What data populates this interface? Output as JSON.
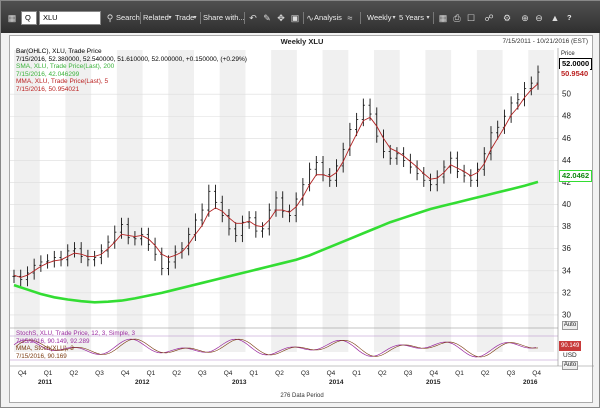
{
  "toolbar": {
    "symbol_prefix": "Q",
    "symbol_value": "XLU",
    "search": "Search",
    "related": "Related",
    "trade": "Trade",
    "share": "Share with...",
    "analysis": "Analysis",
    "interval": "Weekly",
    "range": "5 Years",
    "help": "?"
  },
  "chart": {
    "title": "Weekly XLU",
    "date_range": "7/15/2011 - 10/21/2016 (EST)",
    "price_axis_label": "Price",
    "price_box": "52.0000",
    "mma_box": "50.9540",
    "sma_box": "42.0462",
    "usd_label": "USD",
    "auto_label": "Auto",
    "stoch_box": "90.149",
    "footer": "276 Data Period",
    "legend": [
      {
        "text": "Bar(OHLC), XLU, Trade Price",
        "color": "black"
      },
      {
        "text": "7/15/2016, 52.380000, 52.540000, 51.610000, 52.000000, +0.150000, (+0.29%)",
        "color": "black"
      },
      {
        "text": "SMA, XLU, Trade Price(Last), 200",
        "color": "green"
      },
      {
        "text": "7/15/2016, 42.046299",
        "color": "green"
      },
      {
        "text": "MMA, XLU, Trade Price(Last), 5",
        "color": "red"
      },
      {
        "text": "7/15/2016, 50.954021",
        "color": "red"
      }
    ],
    "stoch_legend": [
      {
        "text": "StochS, XLU, Trade Price, 12, 3, Simple, 3",
        "color": "purple"
      },
      {
        "text": "7/15/2016, 90.149, 92.289",
        "color": "purple"
      },
      {
        "text": "MMA, Stoch(XLU), 3",
        "color": "brown"
      },
      {
        "text": "7/15/2016, 90.169",
        "color": "brown"
      }
    ],
    "y_ticks": [
      "50",
      "48",
      "46",
      "44",
      "42",
      "40",
      "38",
      "36",
      "34",
      "32",
      "30"
    ],
    "x_quarters": [
      "Q4",
      "Q1",
      "Q2",
      "Q3",
      "Q4",
      "Q1",
      "Q2",
      "Q3",
      "Q4",
      "Q1",
      "Q2",
      "Q3",
      "Q4",
      "Q1",
      "Q2",
      "Q3",
      "Q4",
      "Q1",
      "Q2",
      "Q3",
      "Q4"
    ],
    "x_years": [
      "2011",
      "2012",
      "2013",
      "2014",
      "2015",
      "2016"
    ]
  },
  "chart_data": {
    "type": "line",
    "ylim": [
      29,
      54
    ],
    "series": [
      {
        "name": "Bar(OHLC), XLU, Trade Price",
        "color": "#000000",
        "values": [
          33.5,
          33.2,
          33.8,
          34.5,
          34.8,
          34.9,
          35.2,
          35.0,
          35.8,
          36.0,
          35.3,
          35.0,
          35.2,
          35.8,
          36.6,
          37.5,
          38.2,
          37.0,
          36.9,
          37.3,
          36.4,
          35.5,
          34.2,
          34.8,
          35.7,
          36.0,
          37.3,
          38.6,
          39.5,
          41.2,
          40.2,
          39.0,
          37.8,
          37.2,
          38.4,
          38.8,
          37.6,
          37.8,
          39.5,
          40.6,
          39.4,
          39.0,
          40.5,
          41.8,
          43.2,
          43.8,
          42.7,
          42.2,
          43.5,
          45.0,
          46.8,
          47.7,
          49.0,
          48.2,
          46.2,
          44.8,
          44.2,
          44.6,
          44.0,
          43.4,
          42.8,
          42.2,
          41.8,
          42.5,
          43.4,
          44.2,
          43.0,
          42.6,
          42.2,
          43.2,
          44.6,
          46.5,
          47.0,
          48.0,
          49.2,
          49.5,
          50.5,
          51.0,
          52.0
        ]
      },
      {
        "name": "MMA, XLU, Trade Price(Last), 5",
        "color": "#b22222",
        "values": [
          33.6,
          33.4,
          33.6,
          34.0,
          34.4,
          34.7,
          34.9,
          35.0,
          35.3,
          35.6,
          35.5,
          35.3,
          35.3,
          35.5,
          36.0,
          36.6,
          37.3,
          37.2,
          37.1,
          37.2,
          36.9,
          36.3,
          35.5,
          35.2,
          35.4,
          35.7,
          36.4,
          37.3,
          38.1,
          39.3,
          39.7,
          39.4,
          38.8,
          38.3,
          38.3,
          38.5,
          38.1,
          38.0,
          38.6,
          39.5,
          39.5,
          39.3,
          39.8,
          40.7,
          41.8,
          42.7,
          42.7,
          42.5,
          42.9,
          43.9,
          45.2,
          46.4,
          47.6,
          47.9,
          47.1,
          46.0,
          45.1,
          44.8,
          44.4,
          43.9,
          43.4,
          42.8,
          42.3,
          42.4,
          42.9,
          43.6,
          43.3,
          43.0,
          42.6,
          42.9,
          43.7,
          45.0,
          46.0,
          47.0,
          48.1,
          48.8,
          49.7,
          50.4,
          50.95
        ]
      },
      {
        "name": "SMA, XLU, Trade Price(Last), 200",
        "color": "#33dd33",
        "values": [
          32.7,
          32.3,
          31.9,
          31.6,
          31.4,
          31.25,
          31.15,
          31.2,
          31.3,
          31.5,
          31.75,
          32.0,
          32.3,
          32.6,
          32.9,
          33.2,
          33.5,
          33.8,
          34.1,
          34.4,
          34.7,
          35.0,
          35.4,
          35.9,
          36.4,
          36.9,
          37.4,
          37.9,
          38.4,
          38.8,
          39.2,
          39.6,
          39.9,
          40.2,
          40.5,
          40.8,
          41.1,
          41.4,
          41.7,
          42.05
        ]
      }
    ]
  }
}
